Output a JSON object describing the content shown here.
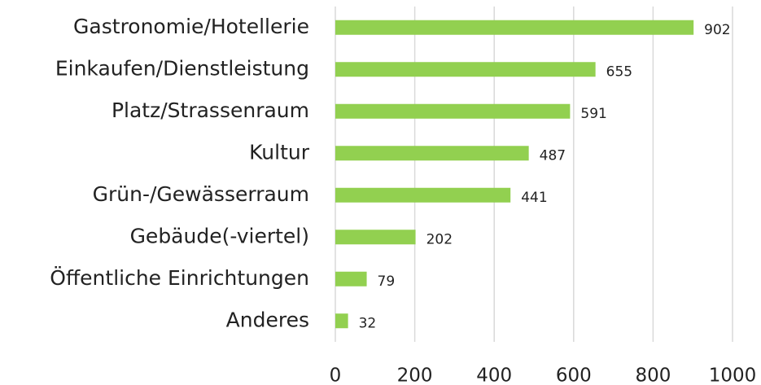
{
  "chart_data": {
    "type": "bar",
    "orientation": "horizontal",
    "categories": [
      "Gastronomie/Hotellerie",
      "Einkaufen/Dienstleistung",
      "Platz/Strassenraum",
      "Kultur",
      "Grün-/Gewässerraum",
      "Gebäude(-viertel)",
      "Öffentliche Einrichtungen",
      "Anderes"
    ],
    "values": [
      902,
      655,
      591,
      487,
      441,
      202,
      79,
      32
    ],
    "color": "#92d050",
    "xlim": [
      0,
      1000
    ],
    "xticks": [
      0,
      200,
      400,
      600,
      800,
      1000
    ],
    "grid": true
  }
}
